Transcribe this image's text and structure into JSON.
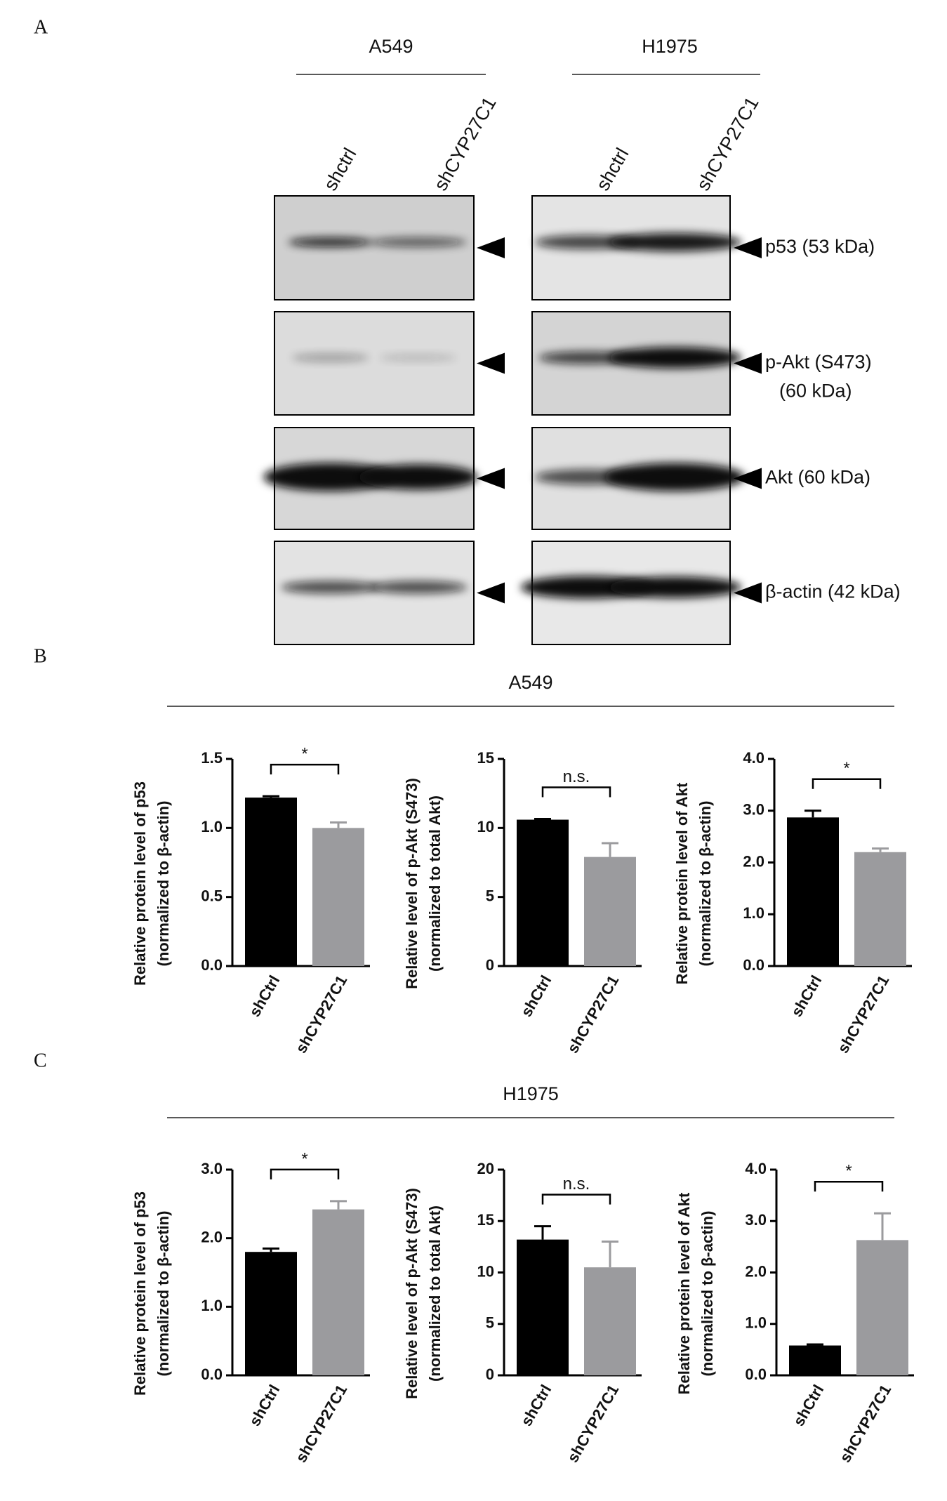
{
  "panels": [
    "A",
    "B",
    "C"
  ],
  "blot": {
    "columns": [
      {
        "title": "A549",
        "lanes": [
          "shctrl",
          "shCYP27C1"
        ]
      },
      {
        "title": "H1975",
        "lanes": [
          "shctrl",
          "shCYP27C1"
        ]
      }
    ],
    "rows": [
      {
        "label": [
          "p53 (53 kDa)"
        ]
      },
      {
        "label": [
          "p-Akt (S473)",
          "(60 kDa)"
        ]
      },
      {
        "label": [
          "Akt (60 kDa)"
        ]
      },
      {
        "label": [
          "β-actin (42 kDa)"
        ]
      }
    ]
  },
  "group_titles": [
    "A549",
    "H1975"
  ],
  "chart_data": [
    {
      "type": "bar",
      "ylabel": [
        "Relative protein level of p53",
        "(normalized to β-actin)"
      ],
      "categories": [
        "shCtrl",
        "shCYP27C1"
      ],
      "values": [
        1.22,
        1.0
      ],
      "errors": [
        0.01,
        0.04
      ],
      "colors": [
        "#000000",
        "#9b9b9e"
      ],
      "annotation": "*",
      "ylim": [
        0,
        1.5
      ],
      "yticks": [
        {
          "value": 0,
          "label": "0.0"
        },
        0.5,
        {
          "value": 1,
          "label": "1.0"
        },
        1.5
      ]
    },
    {
      "type": "bar",
      "ylabel": [
        "Relative level of p-Akt (S473)",
        "(normalized to total Akt)"
      ],
      "categories": [
        "shCtrl",
        "shCYP27C1"
      ],
      "values": [
        10.6,
        7.9
      ],
      "errors": [
        0.05,
        1.0
      ],
      "colors": [
        "#000000",
        "#9b9b9e"
      ],
      "annotation": "n.s.",
      "ylim": [
        0,
        15
      ],
      "yticks": [
        0,
        5,
        10,
        15
      ]
    },
    {
      "type": "bar",
      "ylabel": [
        "Relative protein level of Akt",
        "(normalized to β-actin)"
      ],
      "categories": [
        "shCtrl",
        "shCYP27C1"
      ],
      "values": [
        2.87,
        2.2
      ],
      "errors": [
        0.13,
        0.07
      ],
      "colors": [
        "#000000",
        "#9b9b9e"
      ],
      "annotation": "*",
      "ylim": [
        0,
        4
      ],
      "yticks": [
        {
          "value": 0,
          "label": "0.0"
        },
        {
          "value": 1,
          "label": "1.0"
        },
        {
          "value": 2,
          "label": "2.0"
        },
        {
          "value": 3,
          "label": "3.0"
        },
        {
          "value": 4,
          "label": "4.0"
        }
      ]
    },
    {
      "type": "bar",
      "ylabel": [
        "Relative protein level of p53",
        "(normalized to β-actin)"
      ],
      "categories": [
        "shCtrl",
        "shCYP27C1"
      ],
      "values": [
        1.8,
        2.42
      ],
      "errors": [
        0.05,
        0.12
      ],
      "colors": [
        "#000000",
        "#9b9b9e"
      ],
      "annotation": "*",
      "ylim": [
        0,
        3
      ],
      "yticks": [
        {
          "value": 0,
          "label": "0.0"
        },
        {
          "value": 1,
          "label": "1.0"
        },
        {
          "value": 2,
          "label": "2.0"
        },
        {
          "value": 3,
          "label": "3.0"
        }
      ]
    },
    {
      "type": "bar",
      "ylabel": [
        "Relative level of p-Akt (S473)",
        "(normalized to total Akt)"
      ],
      "categories": [
        "shCtrl",
        "shCYP27C1"
      ],
      "values": [
        13.2,
        10.5
      ],
      "errors": [
        1.3,
        2.5
      ],
      "colors": [
        "#000000",
        "#9b9b9e"
      ],
      "annotation": "n.s.",
      "ylim": [
        0,
        20
      ],
      "yticks": [
        0,
        5,
        10,
        15,
        20
      ]
    },
    {
      "type": "bar",
      "ylabel": [
        "Relative protein level of Akt",
        "(normalized to β-actin)"
      ],
      "categories": [
        "shCtrl",
        "shCYP27C1"
      ],
      "values": [
        0.58,
        2.63
      ],
      "errors": [
        0.02,
        0.52
      ],
      "colors": [
        "#000000",
        "#9b9b9e"
      ],
      "annotation": "*",
      "ylim": [
        0,
        4
      ],
      "yticks": [
        {
          "value": 0,
          "label": "0.0"
        },
        {
          "value": 1,
          "label": "1.0"
        },
        {
          "value": 2,
          "label": "2.0"
        },
        {
          "value": 3,
          "label": "3.0"
        },
        {
          "value": 4,
          "label": "4.0"
        }
      ]
    }
  ]
}
